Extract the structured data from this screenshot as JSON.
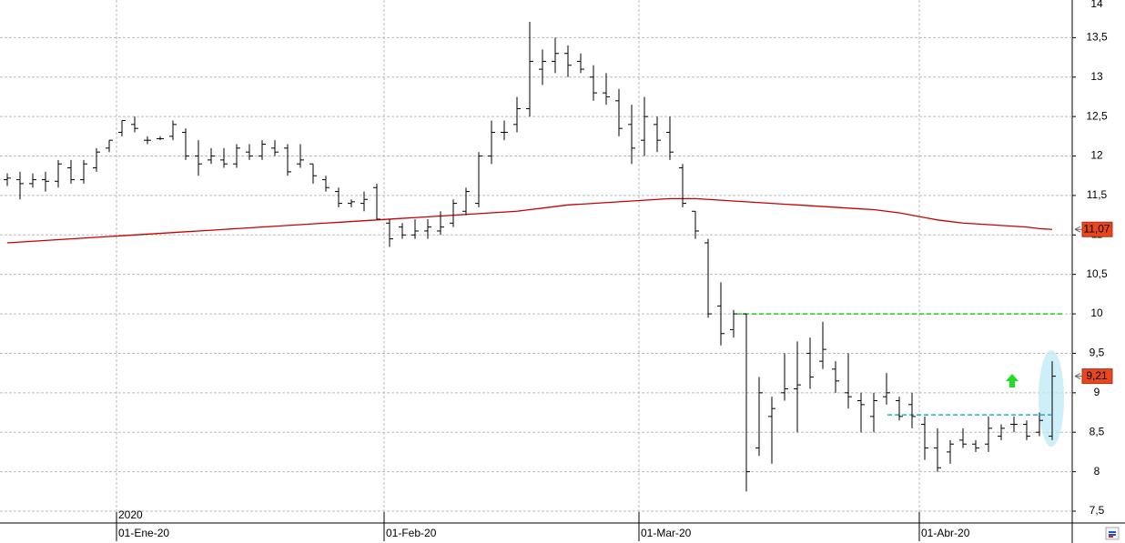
{
  "chart_data": {
    "type": "ohlc",
    "categories": [
      null,
      null,
      null,
      null,
      null,
      null,
      null,
      null,
      null,
      "01-Ene-20",
      null,
      null,
      null,
      null,
      null,
      null,
      null,
      null,
      null,
      null,
      null,
      null,
      null,
      null,
      null,
      null,
      null,
      null,
      null,
      null,
      "01-Feb-20",
      null,
      null,
      null,
      null,
      null,
      null,
      null,
      null,
      null,
      null,
      null,
      null,
      null,
      null,
      null,
      null,
      null,
      null,
      null,
      "01-Mar-20",
      null,
      null,
      null,
      null,
      null,
      null,
      null,
      null,
      null,
      null,
      null,
      null,
      null,
      null,
      null,
      null,
      null,
      null,
      null,
      null,
      null,
      "01-Abr-20",
      null,
      null,
      null,
      null,
      null,
      null,
      null,
      null,
      null,
      null
    ],
    "open": [
      11.7,
      11.7,
      11.65,
      11.7,
      11.68,
      11.85,
      11.7,
      11.85,
      12.1,
      12.3,
      12.4,
      12.2,
      12.22,
      12.25,
      12.3,
      12.0,
      11.95,
      11.95,
      11.9,
      12.05,
      12.0,
      12.1,
      12.1,
      11.9,
      11.9,
      11.7,
      11.55,
      11.4,
      11.4,
      11.6,
      11.15,
      11.1,
      11.0,
      11.05,
      11.05,
      11.15,
      11.3,
      11.4,
      12.0,
      12.3,
      12.4,
      12.6,
      13.1,
      13.2,
      13.3,
      13.2,
      13.0,
      12.8,
      12.7,
      12.4,
      12.2,
      12.4,
      12.3,
      11.85,
      11.3,
      10.9,
      10.1,
      9.8,
      10.0,
      8.3,
      8.7,
      9.0,
      9.05,
      9.5,
      9.4,
      9.3,
      9.0,
      8.9,
      8.7,
      8.95,
      8.9,
      8.85,
      8.6,
      8.3,
      8.25,
      8.4,
      8.35,
      8.35,
      8.45,
      8.6,
      8.6,
      8.5,
      8.45
    ],
    "high": [
      11.78,
      11.8,
      11.78,
      11.8,
      11.95,
      11.95,
      11.95,
      12.1,
      12.2,
      12.45,
      12.5,
      12.25,
      12.25,
      12.45,
      12.35,
      12.2,
      12.1,
      12.1,
      12.15,
      12.15,
      12.2,
      12.2,
      12.15,
      12.15,
      11.9,
      11.75,
      11.6,
      11.45,
      11.55,
      11.65,
      11.2,
      11.15,
      11.2,
      11.2,
      11.3,
      11.45,
      11.6,
      12.05,
      12.45,
      12.45,
      12.75,
      13.7,
      13.35,
      13.5,
      13.4,
      13.3,
      13.15,
      13.05,
      12.85,
      12.65,
      12.75,
      12.5,
      12.5,
      11.9,
      11.3,
      10.95,
      10.4,
      10.05,
      10.0,
      9.2,
      8.95,
      9.5,
      9.65,
      9.7,
      9.9,
      9.4,
      9.5,
      9.0,
      9.0,
      9.25,
      8.95,
      9.0,
      8.7,
      8.55,
      8.4,
      8.55,
      8.4,
      8.7,
      8.6,
      8.7,
      8.65,
      8.75,
      9.4
    ],
    "low": [
      11.62,
      11.45,
      11.6,
      11.55,
      11.6,
      11.65,
      11.65,
      11.8,
      12.05,
      12.25,
      12.3,
      12.15,
      12.2,
      12.2,
      11.95,
      11.75,
      11.9,
      11.85,
      11.85,
      11.95,
      11.95,
      12.0,
      11.75,
      11.85,
      11.65,
      11.55,
      11.35,
      11.35,
      11.3,
      11.2,
      10.85,
      10.95,
      10.95,
      10.95,
      11.0,
      11.1,
      11.25,
      11.35,
      11.9,
      12.2,
      12.3,
      12.5,
      12.9,
      13.05,
      13.0,
      13.05,
      12.7,
      12.65,
      12.25,
      11.9,
      12.0,
      12.05,
      11.95,
      11.35,
      10.95,
      9.95,
      9.6,
      9.7,
      7.75,
      8.2,
      8.1,
      8.9,
      8.5,
      9.05,
      9.3,
      9.0,
      8.8,
      8.5,
      8.5,
      8.85,
      8.65,
      8.55,
      8.15,
      8.0,
      8.1,
      8.3,
      8.25,
      8.25,
      8.4,
      8.5,
      8.4,
      8.45,
      8.4
    ],
    "close": [
      11.72,
      11.65,
      11.7,
      11.68,
      11.9,
      11.7,
      11.9,
      12.05,
      12.2,
      12.45,
      12.35,
      12.2,
      12.22,
      12.4,
      12.0,
      11.9,
      12.0,
      11.9,
      12.1,
      12.0,
      12.15,
      12.05,
      11.8,
      11.95,
      11.75,
      11.6,
      11.4,
      11.42,
      11.45,
      11.2,
      10.95,
      11.0,
      11.05,
      11.1,
      11.1,
      11.4,
      11.55,
      12.0,
      12.3,
      12.3,
      12.6,
      13.2,
      13.2,
      13.3,
      13.15,
      13.1,
      12.8,
      12.75,
      12.35,
      12.1,
      12.5,
      12.2,
      12.05,
      11.4,
      11.05,
      10.0,
      9.75,
      10.0,
      8.0,
      9.0,
      8.8,
      9.05,
      9.1,
      9.2,
      9.55,
      9.15,
      8.95,
      8.85,
      8.9,
      9.0,
      8.7,
      8.7,
      8.3,
      8.05,
      8.35,
      8.35,
      8.3,
      8.55,
      8.55,
      8.6,
      8.45,
      8.65,
      9.21
    ],
    "bar_color": "#000000",
    "moving_average": {
      "color": "#cc0000",
      "values": [
        10.9,
        10.91,
        10.92,
        10.93,
        10.94,
        10.95,
        10.96,
        10.97,
        10.98,
        10.99,
        11.0,
        11.01,
        11.02,
        11.03,
        11.04,
        11.05,
        11.06,
        11.07,
        11.08,
        11.09,
        11.1,
        11.11,
        11.12,
        11.13,
        11.14,
        11.15,
        11.16,
        11.17,
        11.18,
        11.19,
        11.2,
        11.21,
        11.22,
        11.23,
        11.24,
        11.25,
        11.26,
        11.27,
        11.28,
        11.29,
        11.3,
        11.32,
        11.34,
        11.36,
        11.38,
        11.39,
        11.4,
        11.41,
        11.42,
        11.43,
        11.44,
        11.45,
        11.46,
        11.46,
        11.46,
        11.45,
        11.44,
        11.43,
        11.42,
        11.41,
        11.4,
        11.39,
        11.38,
        11.37,
        11.36,
        11.35,
        11.34,
        11.33,
        11.32,
        11.3,
        11.28,
        11.25,
        11.22,
        11.19,
        11.17,
        11.15,
        11.14,
        11.13,
        11.12,
        11.11,
        11.1,
        11.08,
        11.07
      ]
    },
    "levels": [
      {
        "value": 10,
        "color": "#22cc22"
      },
      {
        "value": 8.72,
        "color": "#22aadd"
      }
    ],
    "price_tags": [
      {
        "value": 11.07,
        "label": "11,07"
      },
      {
        "value": 9.21,
        "label": "9,21"
      }
    ],
    "year_label": "2020",
    "ylim": [
      7.35,
      14
    ],
    "yticks": [
      {
        "value": 7.5,
        "label": "7,5"
      },
      8,
      {
        "value": 8.5,
        "label": "8,5"
      },
      9,
      {
        "value": 9.5,
        "label": "9,5"
      },
      10,
      {
        "value": 10.5,
        "label": "10,5"
      },
      11,
      {
        "value": 11.5,
        "label": "11,5"
      },
      12,
      {
        "value": 12.5,
        "label": "12,5"
      },
      13,
      {
        "value": 13.5,
        "label": "13,5"
      },
      14
    ],
    "grid": true
  }
}
